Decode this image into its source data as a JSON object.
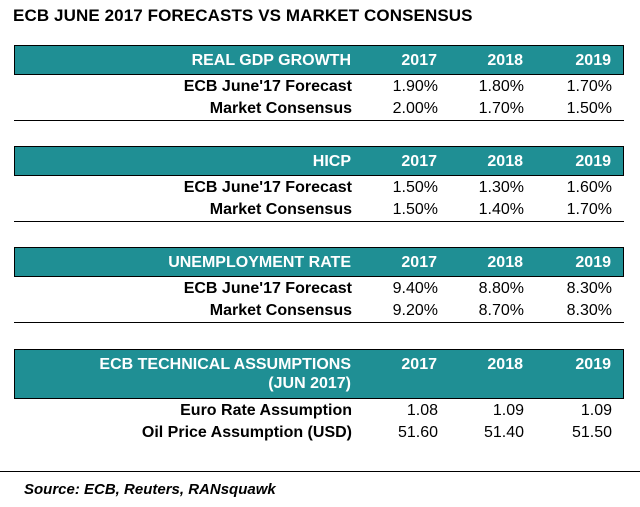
{
  "title": "ECB JUNE 2017 FORECASTS VS MARKET CONSENSUS",
  "years": [
    "2017",
    "2018",
    "2019"
  ],
  "sections": [
    {
      "header": "REAL GDP GROWTH",
      "rows": [
        {
          "label": "ECB June'17 Forecast",
          "values": [
            "1.90%",
            "1.80%",
            "1.70%"
          ]
        },
        {
          "label": "Market Consensus",
          "values": [
            "2.00%",
            "1.70%",
            "1.50%"
          ]
        }
      ]
    },
    {
      "header": "HICP",
      "rows": [
        {
          "label": "ECB June'17 Forecast",
          "values": [
            "1.50%",
            "1.30%",
            "1.60%"
          ]
        },
        {
          "label": "Market Consensus",
          "values": [
            "1.50%",
            "1.40%",
            "1.70%"
          ]
        }
      ]
    },
    {
      "header": "UNEMPLOYMENT RATE",
      "rows": [
        {
          "label": "ECB June'17 Forecast",
          "values": [
            "9.40%",
            "8.80%",
            "8.30%"
          ]
        },
        {
          "label": "Market Consensus",
          "values": [
            "9.20%",
            "8.70%",
            "8.30%"
          ]
        }
      ]
    },
    {
      "header_line1": "ECB TECHNICAL ASSUMPTIONS",
      "header_line2": "(JUN 2017)",
      "rows": [
        {
          "label": "Euro Rate Assumption",
          "values": [
            "1.08",
            "1.09",
            "1.09"
          ]
        },
        {
          "label": "Oil Price Assumption (USD)",
          "values": [
            "51.60",
            "51.40",
            "51.50"
          ]
        }
      ]
    }
  ],
  "source": "Source: ECB, Reuters, RANsquawk",
  "colors": {
    "header_bg": "#1f8f94",
    "header_text": "#ffffff"
  }
}
